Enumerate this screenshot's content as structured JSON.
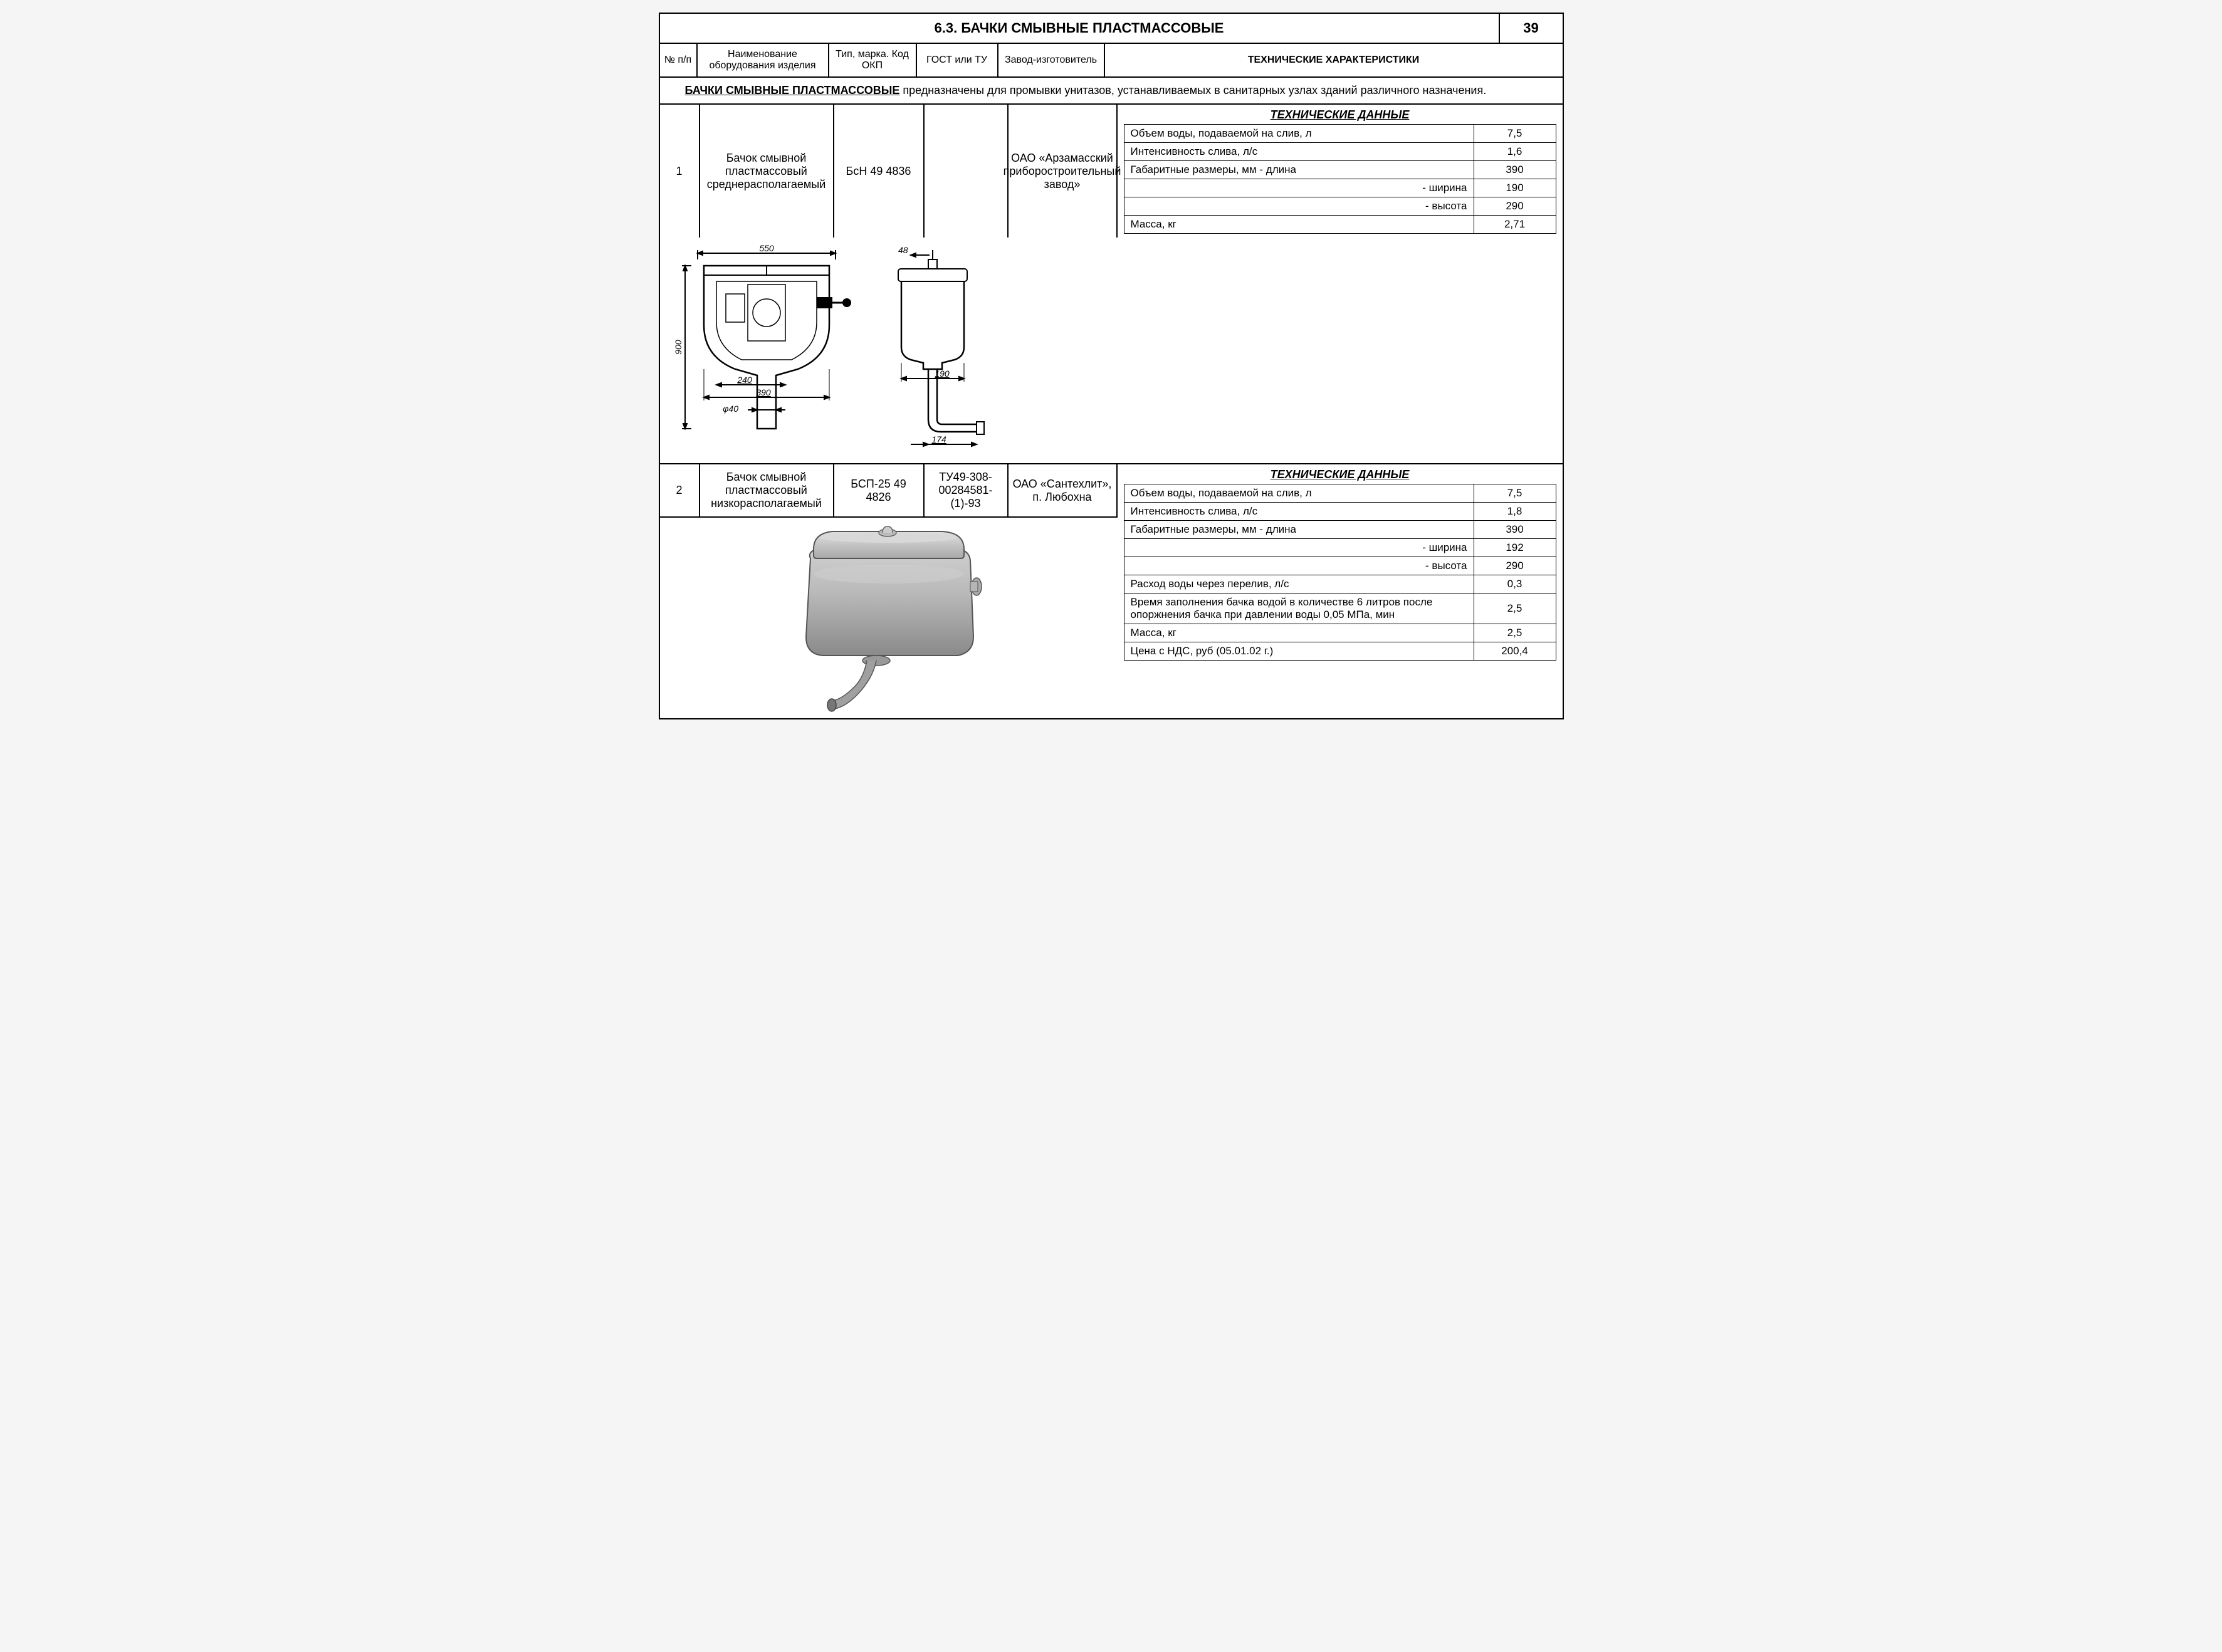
{
  "page_number": "39",
  "section_title": "6.3.  БАЧКИ СМЫВНЫЕ ПЛАСТМАССОВЫЕ",
  "headers": {
    "num": "№ п/п",
    "name": "Наименование оборудования изделия",
    "type": "Тип, марка. Код ОКП",
    "gost": "ГОСТ или ТУ",
    "mfr": "Завод-изготовитель",
    "tech": "ТЕХНИЧЕСКИЕ ХАРАКТЕРИСТИКИ"
  },
  "intro_lead": "БАЧКИ СМЫВНЫЕ ПЛАСТМАССОВЫЕ",
  "intro_rest": " предназначены для промывки унитазов, устанавливаемых в санитарных узлах зданий различного назначения.",
  "item1": {
    "num": "1",
    "name": "Бачок смывной пластмассовый среднерасполагаемый",
    "type": "БсН 49 4836",
    "gost": "",
    "mfr": "ОАО «Арзамасский приборостроительный завод»",
    "tech_title": "ТЕХНИЧЕСКИЕ ДАННЫЕ",
    "rows": [
      {
        "label": "Объем воды, подаваемой на слив, л",
        "val": "7,5"
      },
      {
        "label": "Интенсивность слива, л/с",
        "val": "1,6"
      },
      {
        "label": "Габаритные размеры, мм - длина",
        "val": "390"
      },
      {
        "label": "- ширина",
        "val": "190",
        "indent": true
      },
      {
        "label": "- высота",
        "val": "290",
        "indent": true
      },
      {
        "label": "Масса, кг",
        "val": "2,71"
      }
    ],
    "dims": {
      "d550": "550",
      "d48": "48",
      "d900": "900",
      "d240": "240",
      "d390": "390",
      "d40": "φ40",
      "d190": "190",
      "d174": "174"
    }
  },
  "item2": {
    "num": "2",
    "name": "Бачок смывной пластмассовый низкорасполагаемый",
    "type": "БСП-25 49 4826",
    "gost": "ТУ49-308-00284581-(1)-93",
    "mfr": "ОАО «Сантехлит», п. Любохна",
    "tech_title": "ТЕХНИЧЕСКИЕ ДАННЫЕ",
    "rows": [
      {
        "label": "Объем воды, подаваемой на слив, л",
        "val": "7,5"
      },
      {
        "label": "Интенсивность слива, л/с",
        "val": "1,8"
      },
      {
        "label": "Габаритные размеры, мм - длина",
        "val": "390"
      },
      {
        "label": "- ширина",
        "val": "192",
        "indent": true
      },
      {
        "label": "- высота",
        "val": "290",
        "indent": true
      },
      {
        "label": "Расход воды через перелив, л/с",
        "val": "0,3"
      },
      {
        "label": "Время заполнения бачка водой в количестве 6 литров после опоржнения бачка при давлении воды 0,05 МПа, мин",
        "val": "2,5"
      },
      {
        "label": "Масса, кг",
        "val": "2,5"
      },
      {
        "label": "Цена с НДС, руб (05.01.02 г.)",
        "val": "200,4"
      }
    ]
  },
  "colors": {
    "border": "#000000",
    "bg": "#ffffff",
    "tank_fill": "#b8b8b8",
    "tank_shadow": "#888888"
  }
}
